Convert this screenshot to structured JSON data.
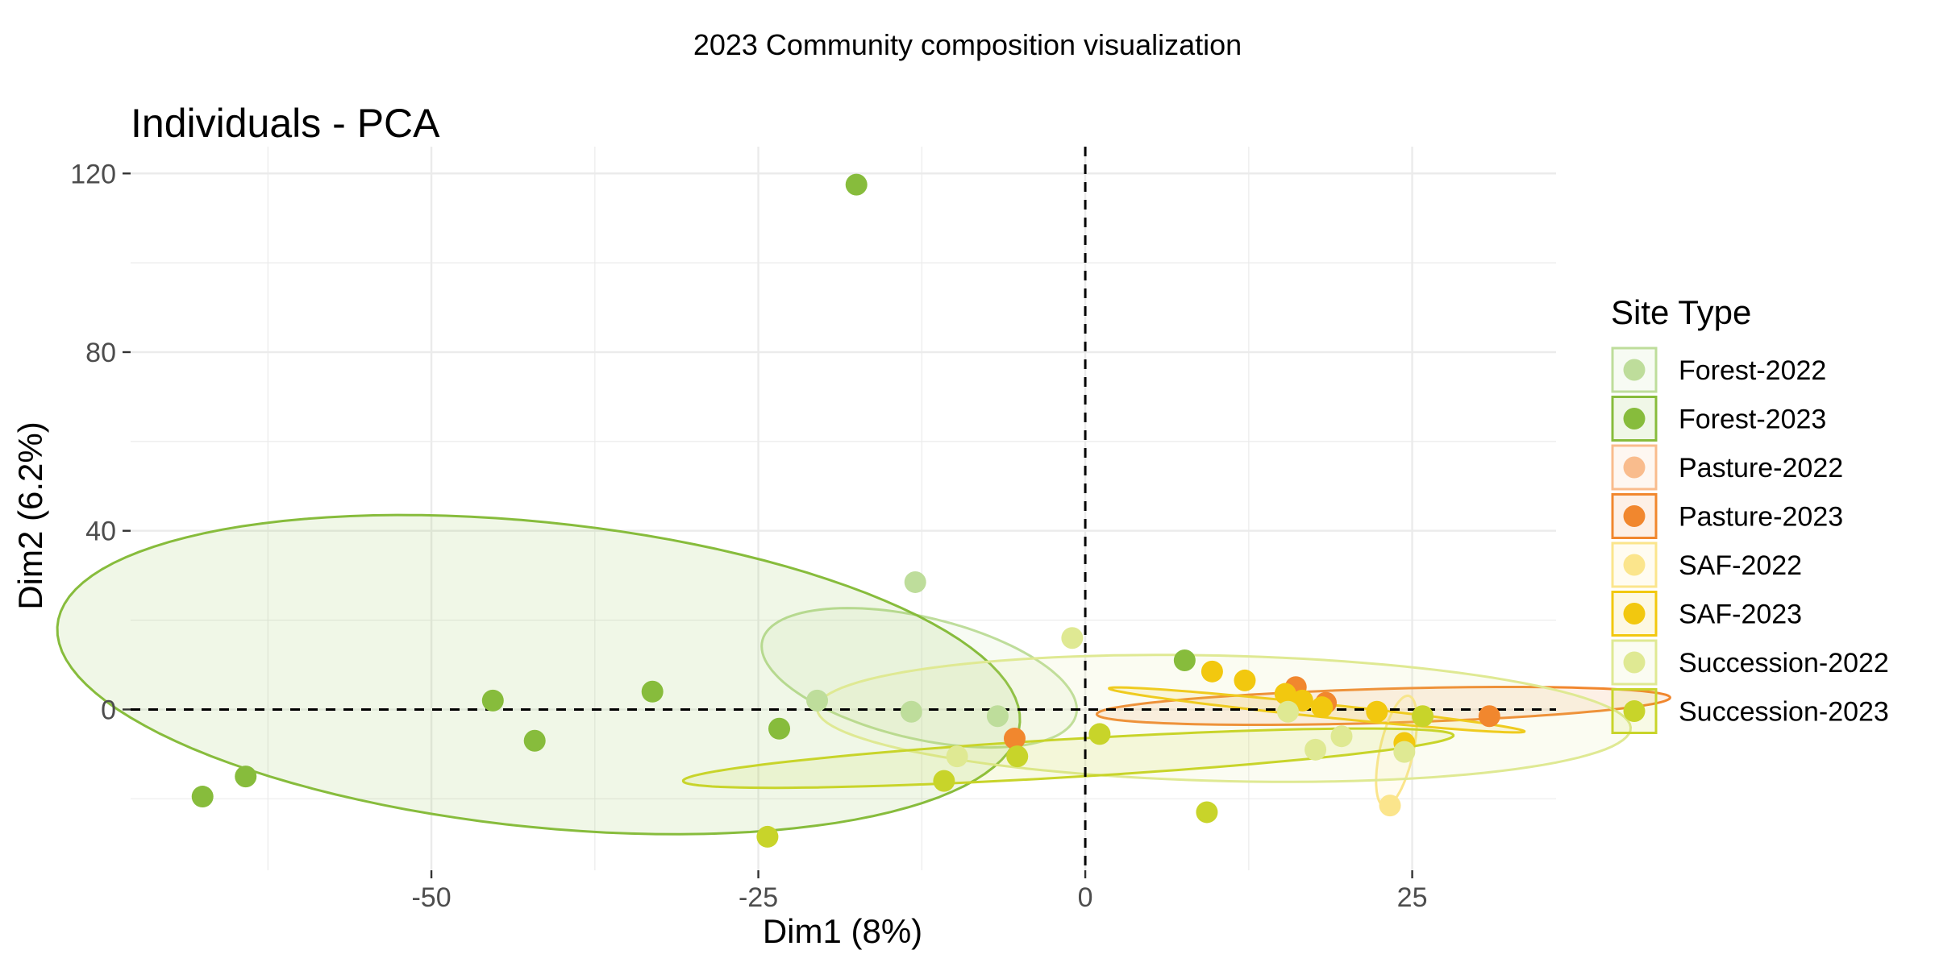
{
  "figure_title": "2023 Community composition visualization",
  "chart_data": {
    "type": "scatter",
    "title": "Individuals - PCA",
    "xlabel": "Dim1 (8%)",
    "ylabel": "Dim2 (6.2%)",
    "xlim": [
      -73,
      36
    ],
    "ylim": [
      -36,
      126
    ],
    "x_ticks": [
      -50,
      -25,
      0,
      25
    ],
    "x_tick_labels": [
      "-50",
      "-25",
      "0",
      "25"
    ],
    "y_ticks": [
      0,
      40,
      80,
      120
    ],
    "y_tick_labels": [
      "0",
      "40",
      "80",
      "120"
    ],
    "grid": true,
    "reference_lines": {
      "x": 0,
      "y": 0,
      "style": "dashed"
    },
    "legend": {
      "title": "Site Type",
      "placement": "right"
    },
    "series": [
      {
        "name": "Forest-2022",
        "color": "#bedd9b",
        "points": [
          [
            -13,
            28.5
          ],
          [
            -13.3,
            -0.5
          ],
          [
            -6.7,
            -1.5
          ],
          [
            -20.5,
            2
          ]
        ],
        "ellipse": {
          "cx": -12.7,
          "cy": 7.1,
          "rx": 9.8,
          "ry": 17.1,
          "angle_deg": 30
        }
      },
      {
        "name": "Forest-2023",
        "color": "#87bc3c",
        "points": [
          [
            -17.5,
            117.5
          ],
          [
            -45.3,
            2
          ],
          [
            -42.1,
            -7
          ],
          [
            -33.1,
            4
          ],
          [
            -23.4,
            -4.3
          ],
          [
            -64.2,
            -15
          ],
          [
            -67.5,
            -19.5
          ],
          [
            7.6,
            11
          ]
        ],
        "ellipse": {
          "cx": -41.8,
          "cy": 7.8,
          "rx": 30.7,
          "ry": 41.1,
          "angle_deg": 48
        }
      },
      {
        "name": "Pasture-2022",
        "color": "#f9bc8d",
        "points": []
      },
      {
        "name": "Pasture-2023",
        "color": "#f1872e",
        "points": [
          [
            16.1,
            5
          ],
          [
            30.9,
            -1.5
          ],
          [
            -5.4,
            -6.5
          ],
          [
            18.4,
            1.5
          ]
        ],
        "ellipse": {
          "cx": 22.8,
          "cy": 0.8,
          "rx": 22,
          "ry": 3.8,
          "angle_deg": 5
        }
      },
      {
        "name": "SAF-2022",
        "color": "#fbe58c",
        "points": [
          [
            23.3,
            -21.5
          ]
        ],
        "ellipse": {
          "cx": 23.8,
          "cy": -9.3,
          "rx": 12.4,
          "ry": 1.3,
          "angle_deg": 86
        }
      },
      {
        "name": "SAF-2023",
        "color": "#f2c80f",
        "points": [
          [
            9.7,
            8.5
          ],
          [
            12.2,
            6.5
          ],
          [
            15.3,
            3.5
          ],
          [
            18.1,
            0.5
          ],
          [
            22.3,
            -0.5
          ],
          [
            24.4,
            -7.5
          ],
          [
            16.6,
            2
          ]
        ],
        "ellipse": {
          "cx": 17.7,
          "cy": -0.1,
          "rx": 16.6,
          "ry": 1.4,
          "angle_deg": -17
        }
      },
      {
        "name": "Succession-2022",
        "color": "#dfe993",
        "points": [
          [
            -1,
            16
          ],
          [
            -9.8,
            -10.5
          ],
          [
            17.6,
            -9
          ],
          [
            19.6,
            -6
          ],
          [
            15.5,
            -0.5
          ],
          [
            24.4,
            -9.5
          ]
        ],
        "ellipse": {
          "cx": 10.6,
          "cy": -2,
          "rx": 31.2,
          "ry": 14,
          "angle_deg": -5
        }
      },
      {
        "name": "Succession-2023",
        "color": "#c8d42a",
        "points": [
          [
            1.1,
            -5.5
          ],
          [
            -5.2,
            -10.5
          ],
          [
            -10.8,
            -16
          ],
          [
            -24.3,
            -28.5
          ],
          [
            9.3,
            -23
          ],
          [
            25.8,
            -1.5
          ]
        ],
        "ellipse": {
          "cx": -1.3,
          "cy": -10.9,
          "rx": 29.9,
          "ry": 4.2,
          "angle_deg": 10
        }
      }
    ]
  }
}
